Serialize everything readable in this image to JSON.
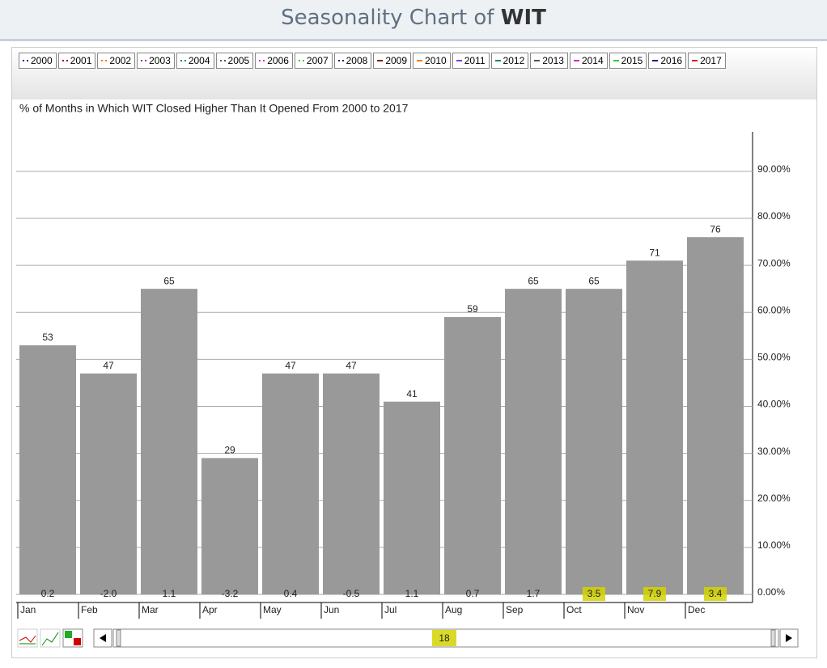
{
  "header": {
    "title": "Seasonality Chart of",
    "ticker": "WIT"
  },
  "chart_data": {
    "type": "bar",
    "subtitle": "% of Months in Which WIT Closed Higher Than It Opened From 2000 to 2017",
    "legend": [
      {
        "name": "2000",
        "color": "#1a237e",
        "dash": "dotted"
      },
      {
        "name": "2001",
        "color": "#8b1a1a",
        "dash": "dotted"
      },
      {
        "name": "2002",
        "color": "#f57c00",
        "dash": "dotted"
      },
      {
        "name": "2003",
        "color": "#9c27b0",
        "dash": "dotted"
      },
      {
        "name": "2004",
        "color": "#00897b",
        "dash": "dotted"
      },
      {
        "name": "2005",
        "color": "#555555",
        "dash": "dotted"
      },
      {
        "name": "2006",
        "color": "#e91ec8",
        "dash": "dotted"
      },
      {
        "name": "2007",
        "color": "#2ecc40",
        "dash": "dotted"
      },
      {
        "name": "2008",
        "color": "#1a237e",
        "dash": "dotted"
      },
      {
        "name": "2009",
        "color": "#8b1a1a",
        "dash": "solid"
      },
      {
        "name": "2010",
        "color": "#f57c00",
        "dash": "solid"
      },
      {
        "name": "2011",
        "color": "#7b3fe4",
        "dash": "solid"
      },
      {
        "name": "2012",
        "color": "#00897b",
        "dash": "solid"
      },
      {
        "name": "2013",
        "color": "#555555",
        "dash": "solid"
      },
      {
        "name": "2014",
        "color": "#e91ec8",
        "dash": "solid"
      },
      {
        "name": "2015",
        "color": "#2ecc40",
        "dash": "solid"
      },
      {
        "name": "2016",
        "color": "#1a237e",
        "dash": "solid"
      },
      {
        "name": "2017",
        "color": "#e02020",
        "dash": "solid"
      }
    ],
    "categories": [
      "Jan",
      "Feb",
      "Mar",
      "Apr",
      "May",
      "Jun",
      "Jul",
      "Aug",
      "Sep",
      "Oct",
      "Nov",
      "Dec"
    ],
    "values": [
      53,
      47,
      65,
      29,
      47,
      47,
      41,
      59,
      65,
      65,
      71,
      76
    ],
    "color": "#999999",
    "average_returns": [
      0.2,
      -2.0,
      1.1,
      -3.2,
      0.4,
      -0.5,
      1.1,
      0.7,
      1.7,
      3.5,
      7.9,
      3.4
    ],
    "average_return_labels": [
      "0.2",
      "-2.0",
      "1.1",
      "-3.2",
      "0.4",
      "-0.5",
      "1.1",
      "0.7",
      "1.7",
      "3.5",
      "7.9",
      "3.4"
    ],
    "highlighted": [
      9,
      10,
      11
    ],
    "highlight_color": "#d4d400",
    "ylim": [
      0,
      98.4
    ],
    "yticks": [
      {
        "value": 0,
        "label": "0.00%"
      },
      {
        "value": 10,
        "label": "10.00%"
      },
      {
        "value": 20,
        "label": "20.00%"
      },
      {
        "value": 30,
        "label": "30.00%"
      },
      {
        "value": 40,
        "label": "40.00%"
      },
      {
        "value": 50,
        "label": "50.00%"
      },
      {
        "value": 60,
        "label": "60.00%"
      },
      {
        "value": 70,
        "label": "70.00%"
      },
      {
        "value": 80,
        "label": "80.00%"
      },
      {
        "value": 90,
        "label": "90.00%"
      }
    ],
    "grid": true,
    "years_shown": 18
  }
}
